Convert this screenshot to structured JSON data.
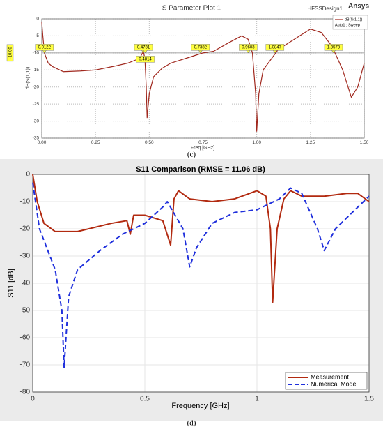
{
  "chart_data": [
    {
      "type": "line",
      "title": "S Parameter Plot 1",
      "design_label": "HFSSDesign1",
      "brand": "Ansys",
      "xlabel": "Freq [GHz]",
      "ylabel": "dB(S(1,1))",
      "caption": "(c)",
      "xlim": [
        0,
        1.5
      ],
      "ylim": [
        -35,
        0
      ],
      "xticks": [
        {
          "value": 0,
          "label": "0.00"
        },
        {
          "value": 0.25,
          "label": "0.25"
        },
        {
          "value": 0.5,
          "label": "0.50"
        },
        {
          "value": 0.75,
          "label": "0.75"
        },
        {
          "value": 1,
          "label": "1.00"
        },
        {
          "value": 1.25,
          "label": "1.25"
        },
        {
          "value": 1.5,
          "label": "1.50"
        }
      ],
      "yticks": [
        0,
        -5,
        -10,
        -15,
        -20,
        -25,
        -30,
        -35
      ],
      "grid": true,
      "ref_line": {
        "value": -10,
        "label": "-10.00"
      },
      "markers": [
        0.0122,
        0.4731,
        0.4814,
        0.7382,
        0.9603,
        1.0847,
        1.3573
      ],
      "legend_subtitle": "Auto1 : Sweep",
      "series": [
        {
          "name": "dB(S(1,1))",
          "color": "#a0281e",
          "x": [
            0,
            0.005,
            0.012,
            0.03,
            0.05,
            0.1,
            0.18,
            0.25,
            0.33,
            0.4,
            0.44,
            0.46,
            0.473,
            0.48,
            0.486,
            0.49,
            0.5,
            0.52,
            0.56,
            0.6,
            0.7,
            0.75,
            0.8,
            0.87,
            0.93,
            0.96,
            0.98,
            0.995,
            1.0,
            1.01,
            1.03,
            1.1,
            1.2,
            1.25,
            1.3,
            1.35,
            1.4,
            1.44,
            1.47,
            1.5
          ],
          "values": [
            -1,
            -5,
            -10,
            -13,
            -14,
            -15.5,
            -15.3,
            -15,
            -14,
            -13,
            -12,
            -11,
            -9.5,
            -12,
            -20,
            -29,
            -22,
            -17,
            -14.5,
            -13,
            -11,
            -10,
            -9.5,
            -7,
            -5,
            -6,
            -10,
            -22,
            -33,
            -22,
            -15,
            -9,
            -5,
            -3,
            -4,
            -8,
            -15,
            -23,
            -20,
            -13
          ]
        }
      ]
    },
    {
      "type": "line",
      "title": "S11 Comparison (RMSE = 11.06 dB)",
      "xlabel": "Frequency [GHz]",
      "ylabel": "S11 [dB]",
      "caption": "(d)",
      "xlim": [
        0,
        1.5
      ],
      "ylim": [
        -80,
        0
      ],
      "xticks": [
        0,
        0.5,
        1,
        1.5
      ],
      "yticks": [
        0,
        -10,
        -20,
        -30,
        -40,
        -50,
        -60,
        -70,
        -80
      ],
      "grid": true,
      "legend": "lower right",
      "series": [
        {
          "name": "Measurement",
          "color": "#b22a10",
          "x": [
            0,
            0.02,
            0.05,
            0.1,
            0.2,
            0.35,
            0.42,
            0.435,
            0.45,
            0.5,
            0.58,
            0.615,
            0.63,
            0.65,
            0.7,
            0.8,
            0.9,
            1.0,
            1.04,
            1.06,
            1.07,
            1.09,
            1.12,
            1.15,
            1.2,
            1.3,
            1.4,
            1.45,
            1.5
          ],
          "values": [
            0,
            -10,
            -18,
            -21,
            -21,
            -18,
            -17,
            -22,
            -15,
            -15,
            -17,
            -26,
            -9,
            -6,
            -9,
            -10,
            -9,
            -6,
            -8,
            -20,
            -47,
            -20,
            -9,
            -6,
            -8,
            -8,
            -7,
            -7,
            -10
          ]
        },
        {
          "name": "Numerical Model",
          "color": "#1f2fdc",
          "dash": true,
          "x": [
            0,
            0.03,
            0.1,
            0.13,
            0.14,
            0.16,
            0.2,
            0.3,
            0.4,
            0.5,
            0.58,
            0.6,
            0.67,
            0.7,
            0.73,
            0.8,
            0.9,
            1.0,
            1.1,
            1.15,
            1.2,
            1.27,
            1.3,
            1.35,
            1.45,
            1.5
          ],
          "values": [
            -3,
            -20,
            -35,
            -50,
            -71,
            -45,
            -35,
            -28,
            -22,
            -18,
            -12,
            -10,
            -20,
            -34,
            -27,
            -18,
            -14,
            -13,
            -9,
            -5,
            -7,
            -20,
            -28,
            -20,
            -12,
            -8
          ]
        }
      ]
    }
  ]
}
